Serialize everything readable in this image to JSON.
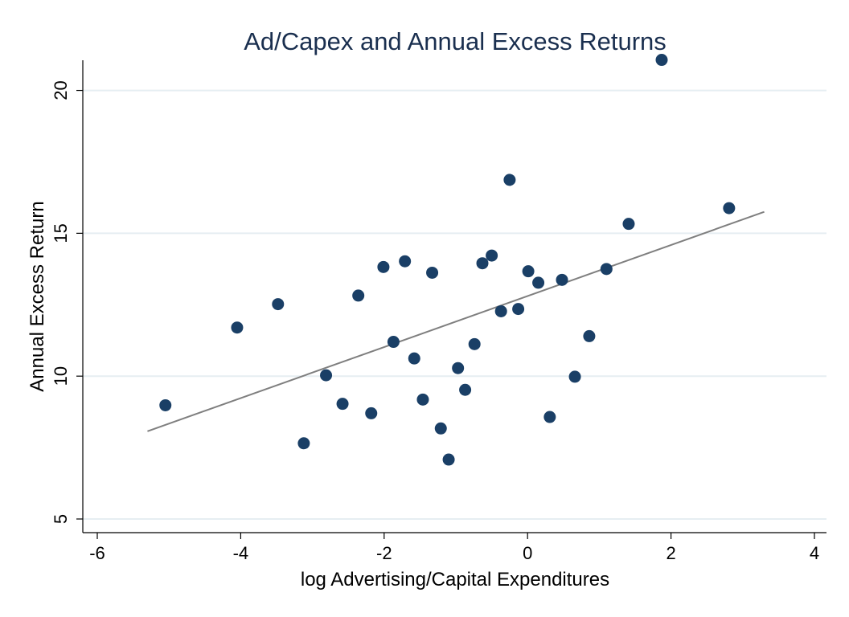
{
  "chart_data": {
    "type": "scatter",
    "title": "Ad/Capex and Annual Excess Returns",
    "xlabel": "log Advertising/Capital Expenditures",
    "ylabel": "Annual Excess Return",
    "xlim": [
      -6,
      4
    ],
    "ylim": [
      5,
      21
    ],
    "xticks": [
      -6,
      -4,
      -2,
      0,
      2,
      4
    ],
    "yticks": [
      5,
      10,
      15,
      20
    ],
    "grid": true,
    "legend": "none",
    "points": [
      {
        "x": -5.05,
        "y": 8.98
      },
      {
        "x": -4.05,
        "y": 11.7
      },
      {
        "x": -3.48,
        "y": 12.52
      },
      {
        "x": -3.12,
        "y": 7.65
      },
      {
        "x": -2.81,
        "y": 10.03
      },
      {
        "x": -2.58,
        "y": 9.03
      },
      {
        "x": -2.36,
        "y": 12.82
      },
      {
        "x": -2.18,
        "y": 8.7
      },
      {
        "x": -2.01,
        "y": 13.82
      },
      {
        "x": -1.87,
        "y": 11.2
      },
      {
        "x": -1.71,
        "y": 14.02
      },
      {
        "x": -1.58,
        "y": 10.62
      },
      {
        "x": -1.46,
        "y": 9.18
      },
      {
        "x": -1.33,
        "y": 13.62
      },
      {
        "x": -1.21,
        "y": 8.17
      },
      {
        "x": -1.1,
        "y": 7.08
      },
      {
        "x": -0.97,
        "y": 10.28
      },
      {
        "x": -0.87,
        "y": 9.52
      },
      {
        "x": -0.74,
        "y": 11.12
      },
      {
        "x": -0.63,
        "y": 13.95
      },
      {
        "x": -0.5,
        "y": 14.22
      },
      {
        "x": -0.37,
        "y": 12.27
      },
      {
        "x": -0.25,
        "y": 16.87
      },
      {
        "x": -0.13,
        "y": 12.35
      },
      {
        "x": 0.01,
        "y": 13.67
      },
      {
        "x": 0.15,
        "y": 13.27
      },
      {
        "x": 0.31,
        "y": 8.57
      },
      {
        "x": 0.48,
        "y": 13.37
      },
      {
        "x": 0.66,
        "y": 9.98
      },
      {
        "x": 0.86,
        "y": 11.4
      },
      {
        "x": 1.1,
        "y": 13.75
      },
      {
        "x": 1.41,
        "y": 15.33
      },
      {
        "x": 1.87,
        "y": 21.07
      },
      {
        "x": 2.81,
        "y": 15.88
      }
    ],
    "fit_line": {
      "x": [
        -5.3,
        3.3
      ],
      "y": [
        8.07,
        15.75
      ]
    },
    "colors": {
      "marker": "#1a3f66",
      "fit_line": "#7f7f7f",
      "grid": "#e6eef2",
      "title": "#1a2f4f"
    }
  }
}
